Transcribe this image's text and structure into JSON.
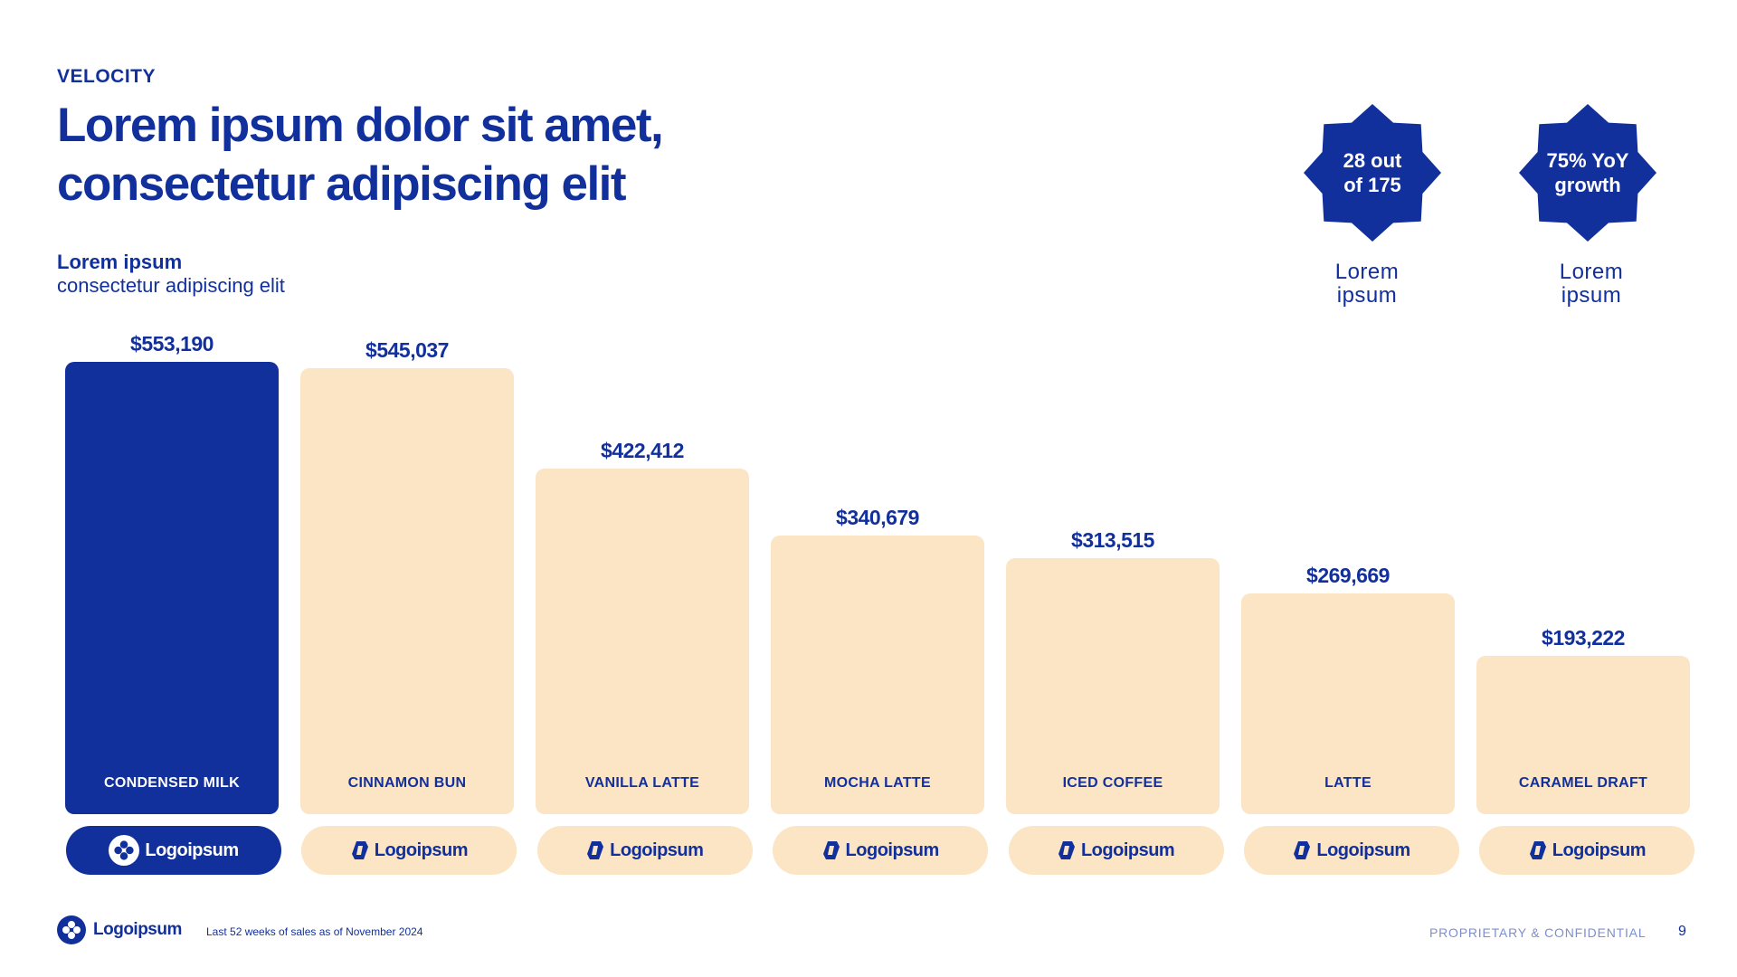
{
  "header": {
    "eyebrow": "VELOCITY",
    "title_line1": "Lorem ipsum dolor sit amet,",
    "title_line2": "consectetur adipiscing elit",
    "sub_head": "Lorem ipsum",
    "sub_text": "consectetur adipiscing elit"
  },
  "badges": [
    {
      "line1": "28 out",
      "line2": "of 175",
      "caption1": "Lorem",
      "caption2": "ipsum"
    },
    {
      "line1": "75% YoY",
      "line2": "growth",
      "caption1": "Lorem",
      "caption2": "ipsum"
    }
  ],
  "colors": {
    "primary": "#12309c",
    "highlight": "#12309c",
    "bar_fill": "#fbe5c5",
    "white": "#ffffff"
  },
  "chart_data": {
    "type": "bar",
    "categories": [
      "CONDENSED MILK",
      "CINNAMON BUN",
      "VANILLA LATTE",
      "MOCHA LATTE",
      "ICED COFFEE",
      "LATTE",
      "CARAMEL DRAFT"
    ],
    "values": [
      553190,
      545037,
      422412,
      340679,
      313515,
      269669,
      193222
    ],
    "value_labels": [
      "$553,190",
      "$545,037",
      "$422,412",
      "$340,679",
      "$313,515",
      "$269,669",
      "$193,222"
    ],
    "highlighted_index": 0,
    "brand_logos": [
      "Logoipsum",
      "Logoipsum",
      "Logoipsum",
      "Logoipsum",
      "Logoipsum",
      "Logoipsum",
      "Logoipsum"
    ],
    "ylim": [
      0,
      553190
    ],
    "grid": false,
    "xlabel": "",
    "ylabel": ""
  },
  "footer": {
    "logo_text": "Logoipsum",
    "note": "Last 52 weeks of sales as of November 2024",
    "confidential": "PROPRIETARY & CONFIDENTIAL",
    "page_number": "9"
  }
}
